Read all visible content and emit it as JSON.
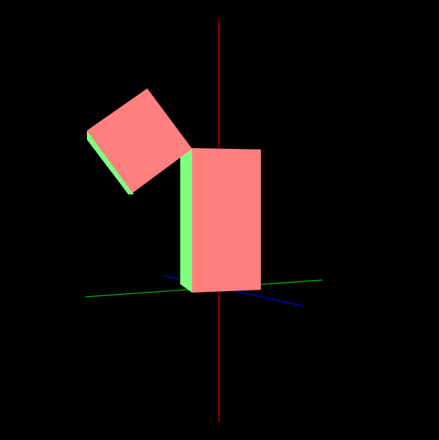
{
  "scene": {
    "background_color": "#000000",
    "axes": {
      "x_axis_color": "#8b0000",
      "y_axis_color": "#00c800",
      "z_axis_color": "#0000c8"
    },
    "objects": [
      {
        "name": "upright-box",
        "front_color": "#ff7f7f",
        "side_color": "#7fff7f"
      },
      {
        "name": "tilted-box",
        "front_color": "#ff7f7f",
        "side_color": "#7fff7f"
      }
    ]
  }
}
